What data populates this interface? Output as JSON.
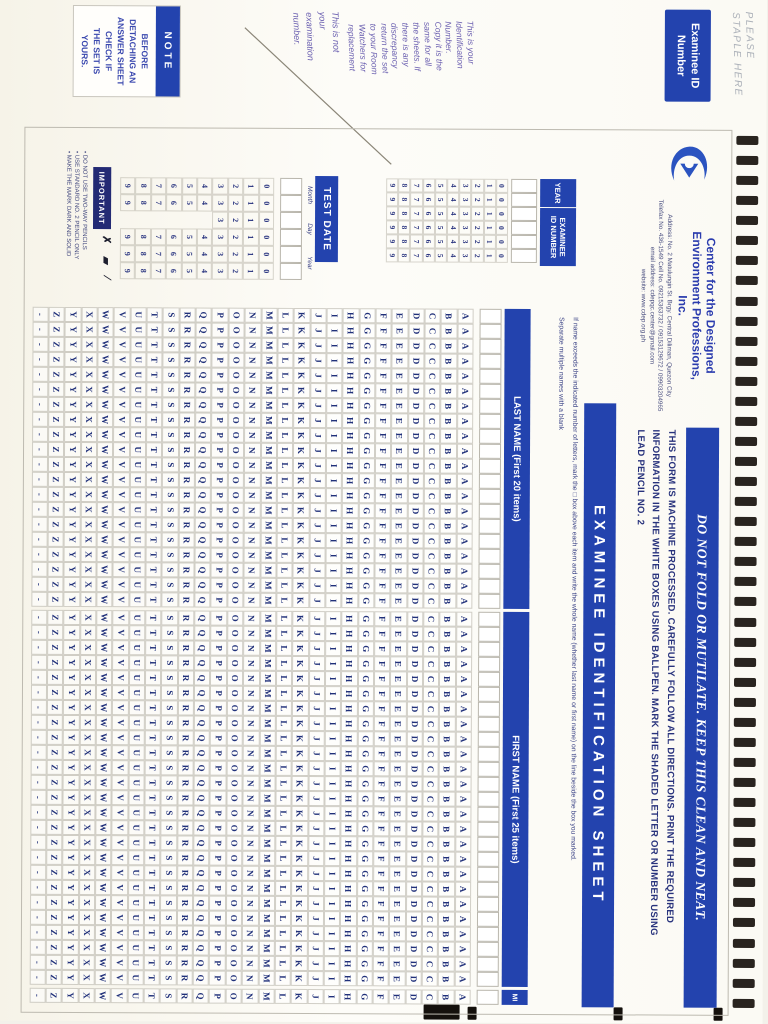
{
  "scan": {
    "timing_count": 44
  },
  "staple_note": {
    "line1": "PLEASE",
    "line2": "STAPLE HERE"
  },
  "examinee_id_box": {
    "line1": "Examinee ID",
    "line2": "Number"
  },
  "handwriting": {
    "id_note_lines": [
      "This is your",
      "Identification",
      "Number.",
      "Copy it is the",
      "same for all",
      "the sheets. If",
      "there is any",
      "discrepancy",
      "return the set",
      "to your Room",
      "Watchers for",
      "replacement"
    ],
    "exam_note_lines": [
      "This is not",
      "your",
      "examination",
      "number."
    ]
  },
  "note_box": {
    "title": "NOTE",
    "lines": [
      "BEFORE",
      "DETACHING AN",
      "ANSWER SHEET",
      "CHECK IF",
      "THE SET IS",
      "YOURS."
    ]
  },
  "header": {
    "org_line1": "Center for the Designed",
    "org_line2": "Environment Professions,",
    "org_line3": "Inc.",
    "address": "Address: No. 2 Matulungin St. Brgy. Central Diliman, Quezon City",
    "contact": "Telefax No. 436-1549 Cell No. 09215363732 / 09153129672 / 09903204965",
    "email": "email address: cdepqc.center@gmail.com",
    "website": "website: www.cdep.org.ph"
  },
  "banners": {
    "do_not_fold": "DO NOT FOLD OR MUTILATE. KEEP THIS CLEAN AND NEAT.",
    "machine_lines": [
      "THIS FORM IS MACHINE PROCESSED. CAREFULLY FOLLOW ALL DIRECTIONS. PRINT THE REQUIRED",
      "INFORMATION IN THE WHITE BOXES USING BALLPEN. MARK THE SHADED LETTER OR NUMBER USING",
      "LEAD PENCIL NO. 2"
    ],
    "sheet_title": "EXAMINEE IDENTIFICATION SHEET"
  },
  "id_section": {
    "year_label": "YEAR",
    "id_label_line1": "EXAMINEE",
    "id_label_line2": "ID NUMBER",
    "box_count": 6,
    "digit_columns": [
      "0123456789",
      "0123456789",
      "0123456789",
      "0123456789",
      "0123456789",
      "0123456789"
    ]
  },
  "test_date": {
    "label": "TEST DATE",
    "sub_labels": [
      "Month",
      "Day",
      "Year"
    ],
    "box_count": 6,
    "digit_columns": [
      "0123456789",
      "0123456789",
      "0123",
      "0123456789",
      "0123456789",
      "0123456789"
    ]
  },
  "name_grid": {
    "instructions_line1": "If name exceeds the indicated number of letters, mark the □ box above each item and write the whole name (whether last name or first name) on the line beside the box you marked.",
    "instructions_line2": "Separate multiple names with a blank",
    "last_name_label": "LAST NAME (First 20 items)",
    "first_name_label": "FIRST NAME (First 25 items)",
    "mi_label": "MI",
    "last_name_columns": 20,
    "first_name_columns": 25,
    "mi_columns": 1,
    "letters": [
      "A",
      "B",
      "C",
      "D",
      "E",
      "F",
      "G",
      "H",
      "I",
      "J",
      "K",
      "L",
      "M",
      "N",
      "O",
      "P",
      "Q",
      "R",
      "S",
      "T",
      "U",
      "V",
      "W",
      "X",
      "Y",
      "Z",
      "-"
    ]
  },
  "important": {
    "title": "IMPORTANT",
    "marks": [
      "✗",
      "▰",
      "∕"
    ],
    "bullets": [
      "• DO NOT USE TWO-WAY PENCILS",
      "• USE STANDARD NO. 2 PENCIL ONLY",
      "• MAKE THE MARK DARK AND SOLID"
    ]
  },
  "colors": {
    "band_blue": "#2343ae",
    "dark_navy_band": "#232a74",
    "text_navy": "#28327c",
    "letter_navy": "#20307a",
    "handwriting_purple": "#6a5fb0",
    "paper": "#fbfaf4",
    "timing_mark": "#17110c"
  }
}
